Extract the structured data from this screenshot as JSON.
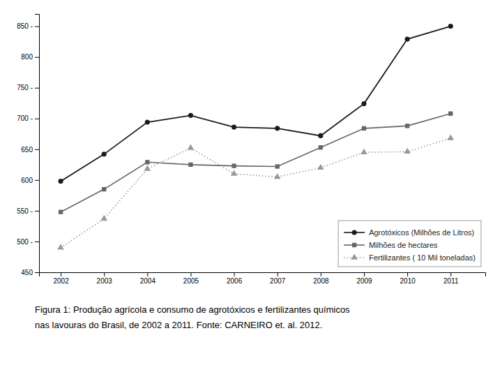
{
  "chart_data": {
    "type": "line",
    "x": [
      2002,
      2003,
      2004,
      2005,
      2006,
      2007,
      2008,
      2009,
      2010,
      2011
    ],
    "series": [
      {
        "name": "Agrotóxicos (Milhões de Litros)",
        "color": "#1a1a1a",
        "marker": "circle",
        "line_style": "solid",
        "values": [
          598,
          642,
          694,
          705,
          686,
          684,
          672,
          724,
          829,
          850
        ]
      },
      {
        "name": "Milhões de hectares",
        "color": "#666666",
        "marker": "square",
        "line_style": "solid",
        "values": [
          548,
          585,
          629,
          625,
          623,
          622,
          653,
          684,
          688,
          708
        ]
      },
      {
        "name": "Fertilizantes ( 10 Mil toneladas)",
        "color": "#999999",
        "marker": "triangle",
        "line_style": "dotted",
        "values": [
          490,
          537,
          618,
          652,
          610,
          605,
          620,
          645,
          646,
          668
        ]
      }
    ],
    "xlim": [
      2001.5,
      2011.8
    ],
    "xticks": [
      2002,
      2003,
      2004,
      2005,
      2006,
      2007,
      2008,
      2009,
      2010,
      2011
    ],
    "ylim": [
      450,
      870
    ],
    "yticks": [
      450,
      {
        "value": 500,
        "label": "500 -"
      },
      {
        "value": 550,
        "label": "550 -"
      },
      600,
      650,
      {
        "value": 700,
        "label": "700 -"
      },
      {
        "value": 750,
        "label": "750 -"
      },
      800,
      {
        "value": 850,
        "label": "850 -"
      }
    ],
    "grid": false,
    "legend": "lower right",
    "annotations": [
      "Figura 1: Produção agrícola e consumo de agrotóxicos e fertilizantes químicos",
      "nas lavouras do Brasil, de 2002 a 2011. Fonte: CARNEIRO et. al. 2012."
    ]
  }
}
